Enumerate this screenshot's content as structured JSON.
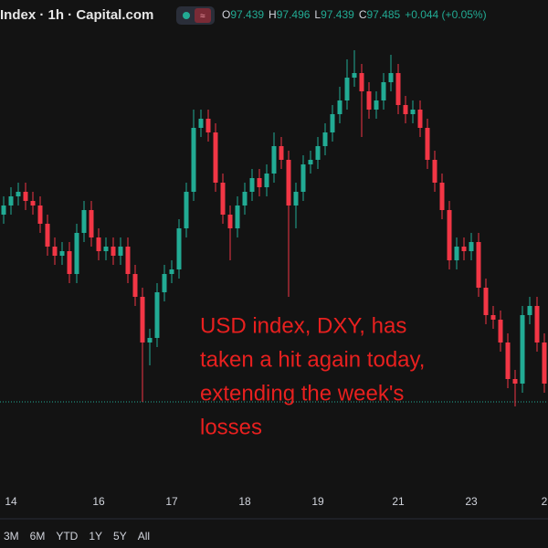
{
  "header": {
    "title": "Index · 1h · Capital.com",
    "ohlc": [
      {
        "label": "O",
        "value": 97.439
      },
      {
        "label": "H",
        "value": 97.496
      },
      {
        "label": "L",
        "value": 97.439
      },
      {
        "label": "C",
        "value": 97.485
      }
    ],
    "change": "+0.044 (+0.05%)"
  },
  "chart_data": {
    "type": "candlestick",
    "categories": [
      null,
      "14",
      null,
      null,
      null,
      null,
      null,
      null,
      null,
      null,
      null,
      null,
      null,
      "16",
      null,
      null,
      null,
      null,
      null,
      null,
      null,
      null,
      null,
      "17",
      null,
      null,
      null,
      null,
      null,
      null,
      null,
      null,
      null,
      "18",
      null,
      null,
      null,
      null,
      null,
      null,
      null,
      null,
      null,
      "19",
      null,
      null,
      null,
      null,
      null,
      null,
      null,
      null,
      null,
      null,
      "21",
      null,
      null,
      null,
      null,
      null,
      null,
      null,
      null,
      null,
      "23",
      null,
      null,
      null,
      null,
      null,
      null,
      null,
      null,
      null,
      "2"
    ],
    "open": [
      98.26,
      98.3,
      98.34,
      98.36,
      98.32,
      98.3,
      98.22,
      98.12,
      98.08,
      98.1,
      98.0,
      98.18,
      98.28,
      98.16,
      98.1,
      98.12,
      98.08,
      98.12,
      98.0,
      97.9,
      97.7,
      97.72,
      97.92,
      98.0,
      98.02,
      98.2,
      98.36,
      98.64,
      98.68,
      98.62,
      98.4,
      98.26,
      98.2,
      98.3,
      98.36,
      98.42,
      98.38,
      98.44,
      98.56,
      98.5,
      98.3,
      98.36,
      98.48,
      98.5,
      98.56,
      98.62,
      98.7,
      98.76,
      98.86,
      98.88,
      98.8,
      98.72,
      98.76,
      98.84,
      98.88,
      98.74,
      98.7,
      98.72,
      98.64,
      98.5,
      98.4,
      98.28,
      98.06,
      98.12,
      98.1,
      98.14,
      97.94,
      97.82,
      97.8,
      97.7,
      97.54,
      97.52,
      97.82,
      97.86,
      97.7
    ],
    "high": [
      98.34,
      98.38,
      98.4,
      98.4,
      98.36,
      98.34,
      98.26,
      98.16,
      98.14,
      98.14,
      98.22,
      98.32,
      98.32,
      98.2,
      98.16,
      98.16,
      98.16,
      98.16,
      98.04,
      97.94,
      97.76,
      97.96,
      98.04,
      98.06,
      98.24,
      98.4,
      98.72,
      98.72,
      98.72,
      98.66,
      98.44,
      98.3,
      98.34,
      98.4,
      98.46,
      98.46,
      98.48,
      98.62,
      98.6,
      98.54,
      98.4,
      98.52,
      98.54,
      98.6,
      98.66,
      98.74,
      98.82,
      98.94,
      98.98,
      98.92,
      98.84,
      98.8,
      98.88,
      98.96,
      98.92,
      98.78,
      98.76,
      98.76,
      98.68,
      98.54,
      98.44,
      98.32,
      98.16,
      98.16,
      98.18,
      98.18,
      97.98,
      97.86,
      97.84,
      97.74,
      97.58,
      97.86,
      97.9,
      97.9,
      97.74
    ],
    "low": [
      98.22,
      98.26,
      98.3,
      98.28,
      98.26,
      98.18,
      98.08,
      98.04,
      98.04,
      97.96,
      97.96,
      98.14,
      98.12,
      98.06,
      98.06,
      98.04,
      98.04,
      97.96,
      97.86,
      97.44,
      97.6,
      97.68,
      97.88,
      97.96,
      97.98,
      98.16,
      98.32,
      98.6,
      98.58,
      98.36,
      98.22,
      98.06,
      98.16,
      98.26,
      98.32,
      98.34,
      98.34,
      98.4,
      98.46,
      97.9,
      98.2,
      98.32,
      98.44,
      98.46,
      98.52,
      98.58,
      98.66,
      98.72,
      98.82,
      98.6,
      98.68,
      98.68,
      98.72,
      98.8,
      98.7,
      98.66,
      98.66,
      98.6,
      98.46,
      98.36,
      98.24,
      98.02,
      98.02,
      98.06,
      98.06,
      97.9,
      97.78,
      97.76,
      97.66,
      97.5,
      97.42,
      97.48,
      97.78,
      97.66,
      97.48
    ],
    "close": [
      98.3,
      98.34,
      98.36,
      98.32,
      98.3,
      98.22,
      98.12,
      98.08,
      98.1,
      98.0,
      98.18,
      98.28,
      98.16,
      98.1,
      98.12,
      98.08,
      98.12,
      98.0,
      97.9,
      97.7,
      97.72,
      97.92,
      98.0,
      98.02,
      98.2,
      98.36,
      98.64,
      98.68,
      98.62,
      98.4,
      98.26,
      98.2,
      98.3,
      98.36,
      98.42,
      98.38,
      98.44,
      98.56,
      98.5,
      98.3,
      98.36,
      98.48,
      98.5,
      98.56,
      98.62,
      98.7,
      98.76,
      98.86,
      98.88,
      98.8,
      98.72,
      98.76,
      98.84,
      98.88,
      98.74,
      98.7,
      98.72,
      98.64,
      98.5,
      98.4,
      98.28,
      98.06,
      98.12,
      98.1,
      98.14,
      97.94,
      97.82,
      97.8,
      97.7,
      97.54,
      97.52,
      97.82,
      97.86,
      97.7,
      97.52
    ],
    "up_color": "#22ab94",
    "down_color": "#f23645",
    "ylim": [
      97.08,
      99.08
    ],
    "price_line": 97.44,
    "price_line_color": "#22ab94",
    "annotation": [
      "USD index, DXY, has",
      "taken a hit again today,",
      "extending the week's",
      "losses"
    ],
    "annotation_color": "#e8201f"
  },
  "range_buttons": [
    "3M",
    "6M",
    "YTD",
    "1Y",
    "5Y",
    "All"
  ]
}
